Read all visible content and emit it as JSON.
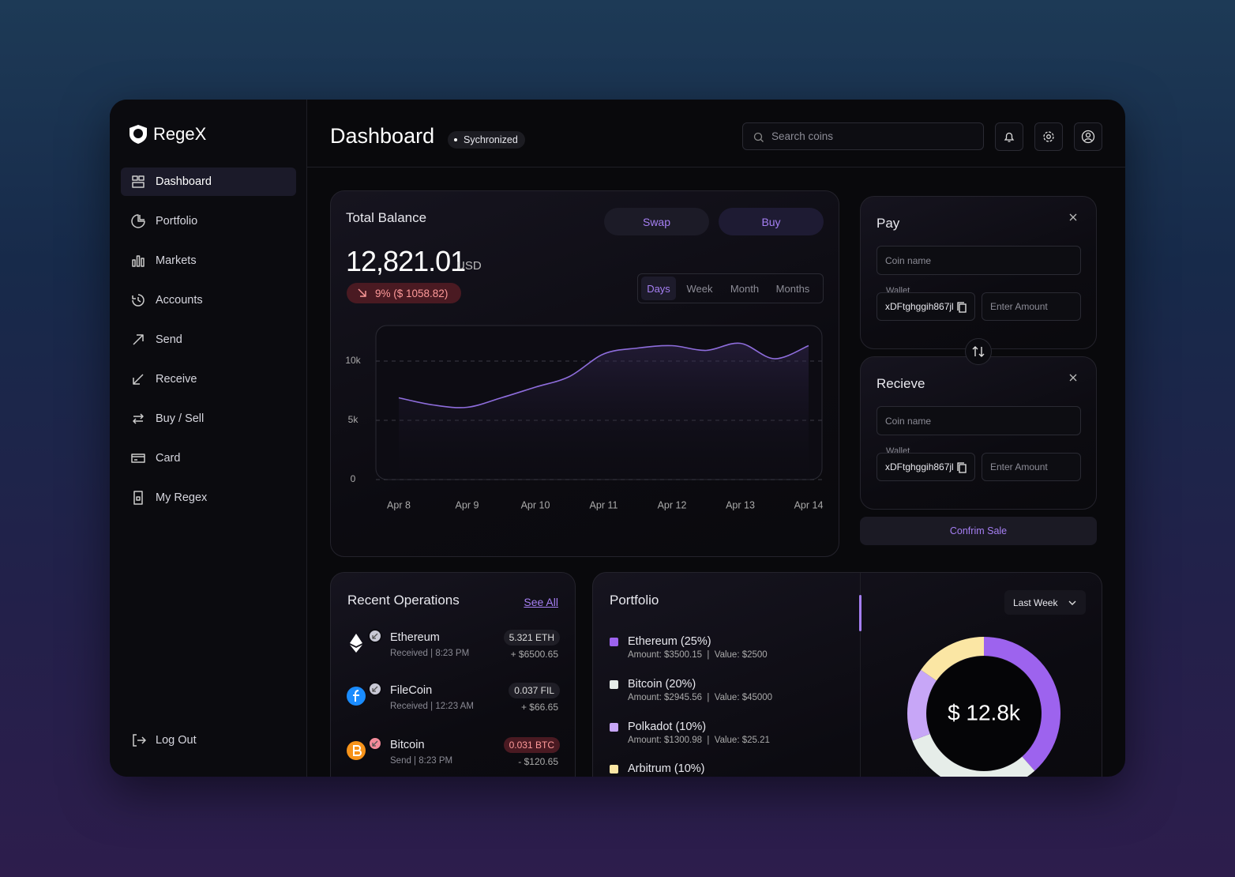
{
  "brand": "RegeX",
  "nav": [
    "Dashboard",
    "Portfolio",
    "Markets",
    "Accounts",
    "Send",
    "Receive",
    "Buy / Sell",
    "Card",
    "My Regex"
  ],
  "logout": "Log Out",
  "header": {
    "title": "Dashboard",
    "status": "Sychronized",
    "search_placeholder": "Search coins"
  },
  "balance": {
    "title": "Total Balance",
    "actions": [
      "Swap",
      "Buy"
    ],
    "amount": "12,821.01",
    "currency": "USD",
    "change": "9% ($ 1058.82)",
    "periods": [
      "Days",
      "Week",
      "Month",
      "Months"
    ]
  },
  "pay": {
    "title": "Pay",
    "coin_placeholder": "Coin name",
    "wallet_label": "Wallet",
    "wallet": "xDFtghggih867jl",
    "amount_placeholder": "Enter Amount"
  },
  "receive": {
    "title": "Recieve",
    "coin_placeholder": "Coin name",
    "wallet_label": "Wallet",
    "wallet": "xDFtghggih867jl",
    "amount_placeholder": "Enter Amount"
  },
  "confirm": "Confrim Sale",
  "operations": {
    "title": "Recent Operations",
    "see_all": "See All",
    "items": [
      {
        "coin": "Ethereum",
        "detail": "Received | 8:23 PM",
        "amount": "5.321 ETH",
        "value": "+ $6500.65"
      },
      {
        "coin": "FileCoin",
        "detail": "Received | 12:23 AM",
        "amount": "0.037 FIL",
        "value": "+ $66.65"
      },
      {
        "coin": "Bitcoin",
        "detail": "Send | 8:23 PM",
        "amount": "0.031 BTC",
        "value": "- $120.65"
      }
    ]
  },
  "portfolio": {
    "title": "Portfolio",
    "filter": "Last Week",
    "details": [
      "Amount: $3500.15  |  Value: $2500",
      "Amount: $2945.56  |  Value: $45000",
      "Amount: $1300.98  |  Value: $25.21"
    ]
  },
  "chart_data": [
    {
      "type": "line",
      "categories": [
        "Apr 8",
        null,
        "Apr 9",
        null,
        "Apr 10",
        null,
        "Apr 11",
        null,
        "Apr 12",
        null,
        "Apr 13",
        null,
        "Apr 14"
      ],
      "values": [
        6900,
        6300,
        6100,
        6900,
        7800,
        8700,
        10600,
        11100,
        11300,
        10900,
        11500,
        10200,
        11300
      ],
      "color": "#8e6ddc",
      "ylim": [
        0,
        13000
      ],
      "yticks": [
        0,
        {
          "value": 5000,
          "label": "5k"
        },
        {
          "value": 10000,
          "label": "10k"
        }
      ],
      "grid": true
    },
    {
      "type": "donut",
      "labels": [
        "Ethereum (25%)",
        "Bitcoin (20%)",
        "Polkadot (10%)",
        "Arbitrum (10%)"
      ],
      "values": [
        25,
        20,
        10,
        10
      ],
      "colors": [
        "#9d63ee",
        "#e6ede9",
        "#c7a6f7",
        "#fbe6a4"
      ],
      "center_label": "$ 12.8k"
    }
  ]
}
